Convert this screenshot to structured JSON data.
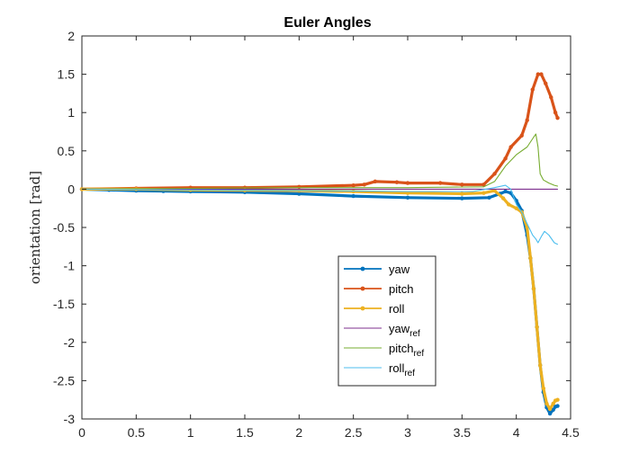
{
  "chart_data": {
    "type": "line",
    "title": "Euler Angles",
    "xlabel": "",
    "ylabel": "orientation [rad]",
    "xlim": [
      0,
      4.5
    ],
    "ylim": [
      -3,
      2
    ],
    "xticks": [
      "0",
      "0.5",
      "1",
      "1.5",
      "2",
      "2.5",
      "3",
      "3.5",
      "4",
      "4.5"
    ],
    "yticks": [
      "2",
      "1.5",
      "1",
      "0.5",
      "0",
      "-0.5",
      "-1",
      "-1.5",
      "-2",
      "-2.5",
      "-3"
    ],
    "grid": false,
    "legend_position": "lower-center",
    "series": [
      {
        "name": "yaw",
        "color": "#0072BD",
        "marker": "dot",
        "points": [
          [
            0,
            0
          ],
          [
            0.25,
            -0.01
          ],
          [
            0.5,
            -0.02
          ],
          [
            0.75,
            -0.025
          ],
          [
            1.0,
            -0.03
          ],
          [
            1.5,
            -0.04
          ],
          [
            2.0,
            -0.06
          ],
          [
            2.5,
            -0.09
          ],
          [
            3.0,
            -0.11
          ],
          [
            3.5,
            -0.12
          ],
          [
            3.75,
            -0.11
          ],
          [
            3.85,
            -0.06
          ],
          [
            3.9,
            -0.03
          ],
          [
            3.95,
            -0.05
          ],
          [
            4.0,
            -0.15
          ],
          [
            4.05,
            -0.28
          ],
          [
            4.1,
            -0.6
          ],
          [
            4.13,
            -0.9
          ],
          [
            4.16,
            -1.3
          ],
          [
            4.19,
            -1.8
          ],
          [
            4.22,
            -2.3
          ],
          [
            4.25,
            -2.65
          ],
          [
            4.28,
            -2.85
          ],
          [
            4.31,
            -2.93
          ],
          [
            4.34,
            -2.88
          ],
          [
            4.36,
            -2.84
          ],
          [
            4.38,
            -2.83
          ]
        ]
      },
      {
        "name": "pitch",
        "color": "#D95319",
        "marker": "dot",
        "points": [
          [
            0,
            0
          ],
          [
            0.5,
            0.01
          ],
          [
            1.0,
            0.02
          ],
          [
            1.5,
            0.02
          ],
          [
            2.0,
            0.03
          ],
          [
            2.5,
            0.05
          ],
          [
            2.6,
            0.06
          ],
          [
            2.7,
            0.1
          ],
          [
            2.9,
            0.09
          ],
          [
            3.0,
            0.08
          ],
          [
            3.3,
            0.08
          ],
          [
            3.5,
            0.06
          ],
          [
            3.7,
            0.06
          ],
          [
            3.8,
            0.2
          ],
          [
            3.9,
            0.4
          ],
          [
            3.95,
            0.55
          ],
          [
            4.05,
            0.7
          ],
          [
            4.1,
            0.9
          ],
          [
            4.15,
            1.3
          ],
          [
            4.2,
            1.5
          ],
          [
            4.23,
            1.5
          ],
          [
            4.27,
            1.38
          ],
          [
            4.32,
            1.2
          ],
          [
            4.36,
            1.0
          ],
          [
            4.38,
            0.93
          ]
        ]
      },
      {
        "name": "roll",
        "color": "#EDB120",
        "marker": "dot",
        "points": [
          [
            0,
            0
          ],
          [
            0.5,
            0.0
          ],
          [
            1.0,
            -0.01
          ],
          [
            1.5,
            -0.015
          ],
          [
            2.0,
            -0.02
          ],
          [
            2.5,
            -0.03
          ],
          [
            3.0,
            -0.05
          ],
          [
            3.5,
            -0.06
          ],
          [
            3.7,
            -0.05
          ],
          [
            3.8,
            -0.02
          ],
          [
            3.88,
            -0.12
          ],
          [
            3.93,
            -0.2
          ],
          [
            4.0,
            -0.25
          ],
          [
            4.05,
            -0.3
          ],
          [
            4.1,
            -0.5
          ],
          [
            4.13,
            -0.9
          ],
          [
            4.16,
            -1.3
          ],
          [
            4.19,
            -1.8
          ],
          [
            4.22,
            -2.3
          ],
          [
            4.25,
            -2.6
          ],
          [
            4.28,
            -2.8
          ],
          [
            4.31,
            -2.87
          ],
          [
            4.34,
            -2.8
          ],
          [
            4.36,
            -2.76
          ],
          [
            4.38,
            -2.75
          ]
        ]
      },
      {
        "name": "yaw",
        "subscript": "ref",
        "color": "#7E2F8E",
        "marker": "none",
        "points": [
          [
            0,
            0
          ],
          [
            4.38,
            0
          ]
        ]
      },
      {
        "name": "pitch",
        "subscript": "ref",
        "color": "#77AC30",
        "marker": "none",
        "points": [
          [
            0,
            0
          ],
          [
            1.0,
            0.01
          ],
          [
            2.0,
            0.02
          ],
          [
            3.0,
            0.02
          ],
          [
            3.7,
            0.03
          ],
          [
            3.8,
            0.1
          ],
          [
            3.9,
            0.3
          ],
          [
            4.0,
            0.45
          ],
          [
            4.1,
            0.55
          ],
          [
            4.16,
            0.68
          ],
          [
            4.18,
            0.72
          ],
          [
            4.2,
            0.55
          ],
          [
            4.22,
            0.2
          ],
          [
            4.25,
            0.12
          ],
          [
            4.3,
            0.08
          ],
          [
            4.35,
            0.05
          ],
          [
            4.38,
            0.04
          ]
        ]
      },
      {
        "name": "roll",
        "subscript": "ref",
        "color": "#4DBEEE",
        "marker": "none",
        "points": [
          [
            0,
            0
          ],
          [
            1.0,
            -0.01
          ],
          [
            2.0,
            -0.02
          ],
          [
            3.0,
            -0.03
          ],
          [
            3.6,
            -0.03
          ],
          [
            3.8,
            0.02
          ],
          [
            3.9,
            0.05
          ],
          [
            3.95,
            0.0
          ],
          [
            4.0,
            -0.2
          ],
          [
            4.05,
            -0.3
          ],
          [
            4.1,
            -0.45
          ],
          [
            4.15,
            -0.6
          ],
          [
            4.18,
            -0.65
          ],
          [
            4.2,
            -0.7
          ],
          [
            4.23,
            -0.62
          ],
          [
            4.26,
            -0.55
          ],
          [
            4.3,
            -0.6
          ],
          [
            4.35,
            -0.7
          ],
          [
            4.38,
            -0.72
          ]
        ]
      }
    ]
  }
}
